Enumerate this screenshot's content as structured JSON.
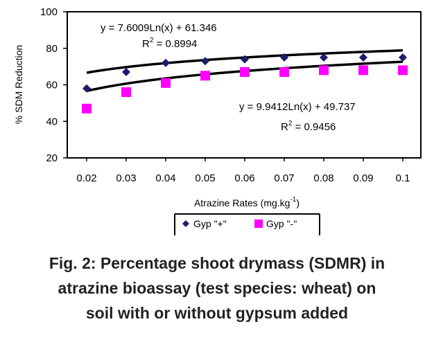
{
  "chart_data": {
    "type": "scatter",
    "x": [
      0.02,
      0.03,
      0.04,
      0.05,
      0.06,
      0.07,
      0.08,
      0.09,
      0.1
    ],
    "x_tick_labels": [
      "0.02",
      "0.03",
      "0.04",
      "0.05",
      "0.06",
      "0.07",
      "0.08",
      "0.09",
      "0.1"
    ],
    "y_ticks": [
      "100",
      "80",
      "60",
      "40",
      "20"
    ],
    "xlabel": "Atrazine Rates (mg.kg",
    "xlabel_superscript": "-1",
    "xlabel_end": ")",
    "ylabel": "% SDM Reduction",
    "ylim": [
      20,
      100
    ],
    "grid": false,
    "legend_position": "bottom",
    "series": [
      {
        "name": "Gyp \"+\"",
        "marker": "diamond",
        "color": "#1c1c6e",
        "values": [
          58,
          67,
          72,
          73,
          74,
          75,
          75,
          75,
          75
        ],
        "trend": {
          "type": "log",
          "a": 7.6009,
          "b": 61.346,
          "equation": "y = 7.6009Ln(x) + 61.346",
          "r2_label": "R",
          "r2_exp": "2",
          "r2_value": " = 0.8994"
        }
      },
      {
        "name": "Gyp \"-\"",
        "marker": "square",
        "color": "#ff00ff",
        "values": [
          47,
          56,
          61,
          65,
          67,
          67,
          68,
          68,
          68
        ],
        "trend": {
          "type": "log",
          "a": 9.9412,
          "b": 49.737,
          "equation": "y = 9.9412Ln(x) + 49.737",
          "r2_label": "R",
          "r2_exp": "2",
          "r2_value": " = 0.9456"
        }
      }
    ]
  },
  "caption": {
    "line1": "Fig. 2:  Percentage shoot drymass (SDMR) in",
    "line2": "atrazine bioassay (test species: wheat) on",
    "line3": "soil with or without gypsum added"
  }
}
